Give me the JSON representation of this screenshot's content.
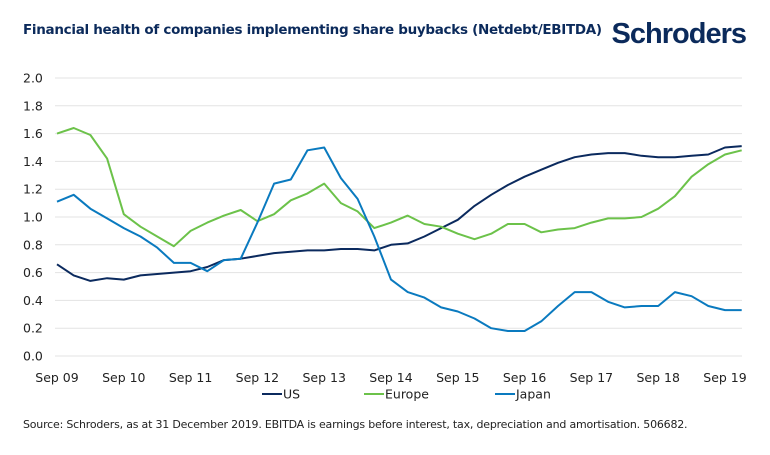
{
  "title": "Financial health of companies implementing share buybacks (Netdebt/EBITDA)",
  "logo": "Schroders",
  "source": "Source: Schroders, as at 31 December 2019. EBITDA is earnings before interest, tax, depreciation and amortisation. 506682.",
  "chart_data": {
    "type": "line",
    "title": "Financial health of companies implementing share buybacks (Netdebt/EBITDA)",
    "xlabel": "",
    "ylabel": "",
    "ylim": [
      0,
      2.0
    ],
    "yticks": [
      "0.0",
      "0.2",
      "0.4",
      "0.6",
      "0.8",
      "1.0",
      "1.2",
      "1.4",
      "1.6",
      "1.8",
      "2.0"
    ],
    "xticks": [
      "Sep 09",
      "Sep 10",
      "Sep 11",
      "Sep 12",
      "Sep 13",
      "Sep 14",
      "Sep 15",
      "Sep 16",
      "Sep 17",
      "Sep 18",
      "Sep 19"
    ],
    "x_frequency": "quarterly, Sep 09 to Dec 19",
    "grid": "horizontal",
    "legend": "bottom",
    "series": [
      {
        "name": "US",
        "color": "#0b2a5e",
        "values": [
          0.66,
          0.58,
          0.54,
          0.56,
          0.55,
          0.58,
          0.59,
          0.6,
          0.61,
          0.64,
          0.69,
          0.7,
          0.72,
          0.74,
          0.75,
          0.76,
          0.76,
          0.77,
          0.77,
          0.76,
          0.8,
          0.81,
          0.86,
          0.92,
          0.98,
          1.08,
          1.16,
          1.23,
          1.29,
          1.34,
          1.39,
          1.43,
          1.45,
          1.46,
          1.46,
          1.44,
          1.43,
          1.43,
          1.44,
          1.45,
          1.5,
          1.51
        ]
      },
      {
        "name": "Europe",
        "color": "#6cc24a",
        "values": [
          1.6,
          1.64,
          1.59,
          1.42,
          1.02,
          0.93,
          0.86,
          0.79,
          0.9,
          0.96,
          1.01,
          1.05,
          0.97,
          1.02,
          1.12,
          1.17,
          1.24,
          1.1,
          1.04,
          0.92,
          0.96,
          1.01,
          0.95,
          0.93,
          0.88,
          0.84,
          0.88,
          0.95,
          0.95,
          0.89,
          0.91,
          0.92,
          0.96,
          0.99,
          0.99,
          1.0,
          1.06,
          1.15,
          1.29,
          1.38,
          1.45,
          1.48
        ]
      },
      {
        "name": "Japan",
        "color": "#0a7abf",
        "values": [
          1.11,
          1.16,
          1.06,
          0.99,
          0.92,
          0.86,
          0.78,
          0.67,
          0.67,
          0.61,
          0.69,
          0.7,
          0.96,
          1.24,
          1.27,
          1.48,
          1.5,
          1.28,
          1.13,
          0.86,
          0.55,
          0.46,
          0.42,
          0.35,
          0.32,
          0.27,
          0.2,
          0.18,
          0.18,
          0.25,
          0.36,
          0.46,
          0.46,
          0.39,
          0.35,
          0.36,
          0.36,
          0.46,
          0.43,
          0.36,
          0.33,
          0.33
        ]
      }
    ]
  }
}
